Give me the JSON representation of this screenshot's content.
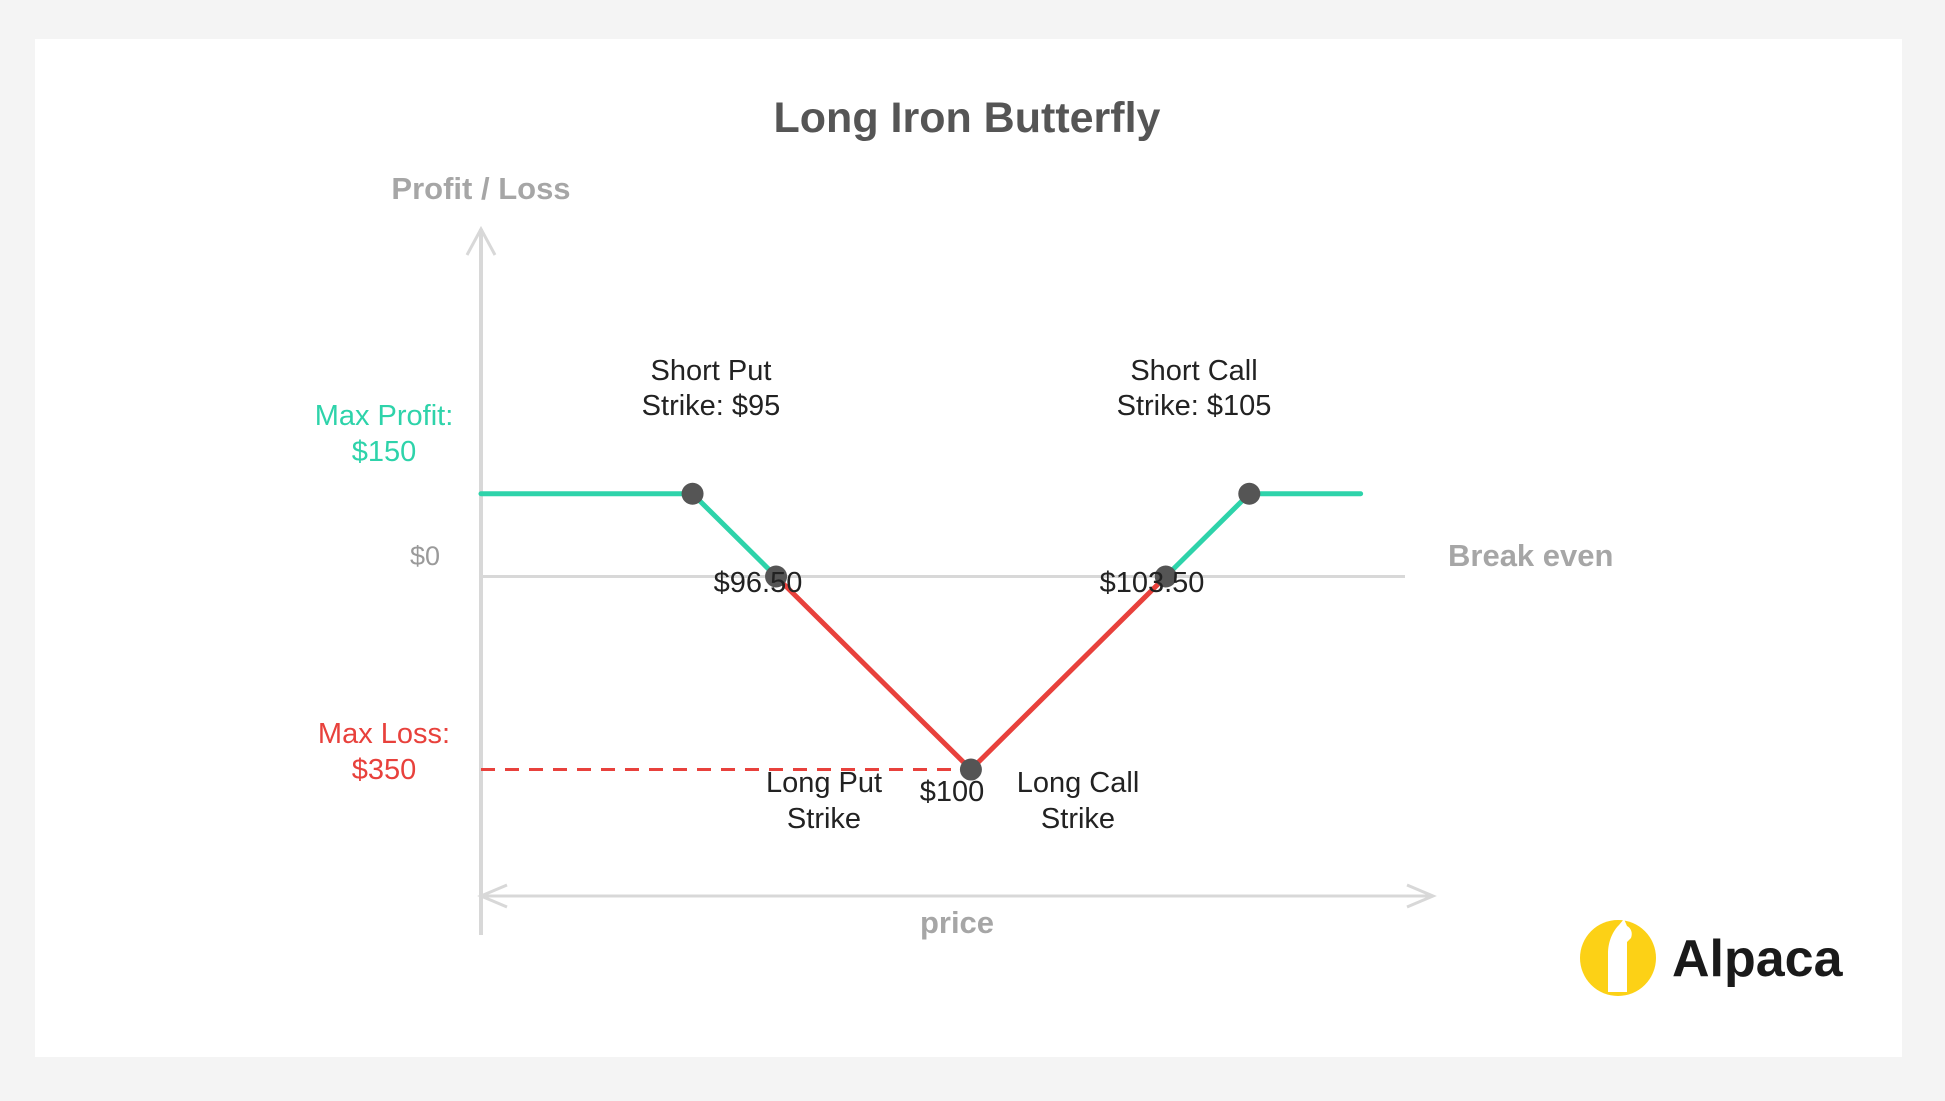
{
  "chart_data": {
    "type": "line",
    "title": "Long Iron Butterfly",
    "ylabel": "Profit / Loss",
    "xlabel": "price",
    "points": [
      {
        "x": 93,
        "y": 150
      },
      {
        "x": 95,
        "y": 150
      },
      {
        "x": 96.5,
        "y": 0
      },
      {
        "x": 100,
        "y": -350
      },
      {
        "x": 103.5,
        "y": 0
      },
      {
        "x": 105,
        "y": 150
      },
      {
        "x": 107,
        "y": 150
      }
    ],
    "xlim": [
      91.2,
      108.3
    ],
    "ylim": [
      -650,
      630
    ],
    "zero_line_label": "Break even",
    "zero_tick_label": "$0",
    "max_profit": {
      "label_line1": "Max Profit:",
      "label_line2": "$150",
      "value": 150
    },
    "max_loss": {
      "label_line1": "Max Loss:",
      "label_line2": "$350",
      "value": -350
    },
    "annotations": {
      "short_put": {
        "line1": "Short Put",
        "line2": "Strike: $95",
        "x": 95,
        "y": 150
      },
      "short_call": {
        "line1": "Short Call",
        "line2": "Strike: $105",
        "x": 105,
        "y": 150
      },
      "be_low": {
        "text": "$96.50",
        "x": 96.5,
        "y": 0
      },
      "be_high": {
        "text": "$103.50",
        "x": 103.5,
        "y": 0
      },
      "long_put": {
        "line1": "Long Put",
        "line2": "Strike"
      },
      "long_call": {
        "line1": "Long Call",
        "line2": "Strike"
      },
      "center": {
        "text": "$100",
        "x": 100,
        "y": -350
      }
    },
    "colors": {
      "profit": "#2ed3aa",
      "loss": "#e8413c",
      "marker": "#555555",
      "axis": "#d8d8d8"
    }
  },
  "brand": {
    "name": "Alpaca",
    "logo_color": "#fcd116",
    "icon": "alpaca-logo-icon"
  }
}
